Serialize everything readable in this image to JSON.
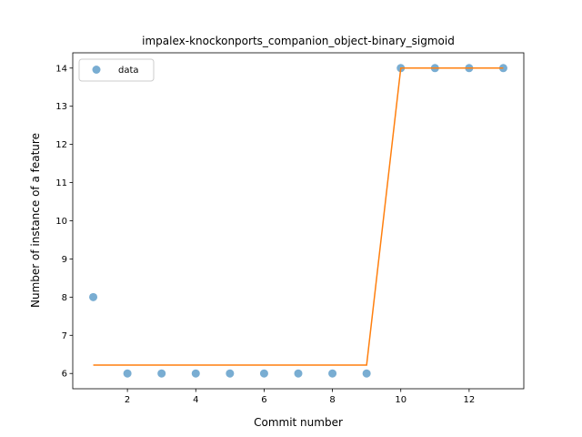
{
  "chart_data": {
    "type": "scatter",
    "title": "impalex-knockonports_companion_object-binary_sigmoid",
    "xlabel": "Commit number",
    "ylabel": "Number of instance of a feature",
    "xlim": [
      0.4,
      13.6
    ],
    "ylim": [
      5.6,
      14.4
    ],
    "xticks": [
      2,
      4,
      6,
      8,
      10,
      12
    ],
    "yticks": [
      6,
      7,
      8,
      9,
      10,
      11,
      12,
      13,
      14
    ],
    "legend": {
      "position": "top-left",
      "entries": [
        "data"
      ]
    },
    "grid": false,
    "series": [
      {
        "name": "data",
        "kind": "scatter",
        "color": "#1f77b4",
        "x": [
          1,
          2,
          3,
          4,
          5,
          6,
          7,
          8,
          9,
          10,
          11,
          12,
          13
        ],
        "y": [
          8,
          6,
          6,
          6,
          6,
          6,
          6,
          6,
          6,
          14,
          14,
          14,
          14
        ]
      },
      {
        "kind": "line",
        "color": "#ff7f0e",
        "x": [
          1,
          2,
          3,
          4,
          5,
          6,
          7,
          8,
          9,
          10,
          11,
          12,
          13
        ],
        "y": [
          6.22,
          6.22,
          6.22,
          6.22,
          6.22,
          6.22,
          6.22,
          6.22,
          6.22,
          14,
          14,
          14,
          14
        ]
      }
    ]
  }
}
